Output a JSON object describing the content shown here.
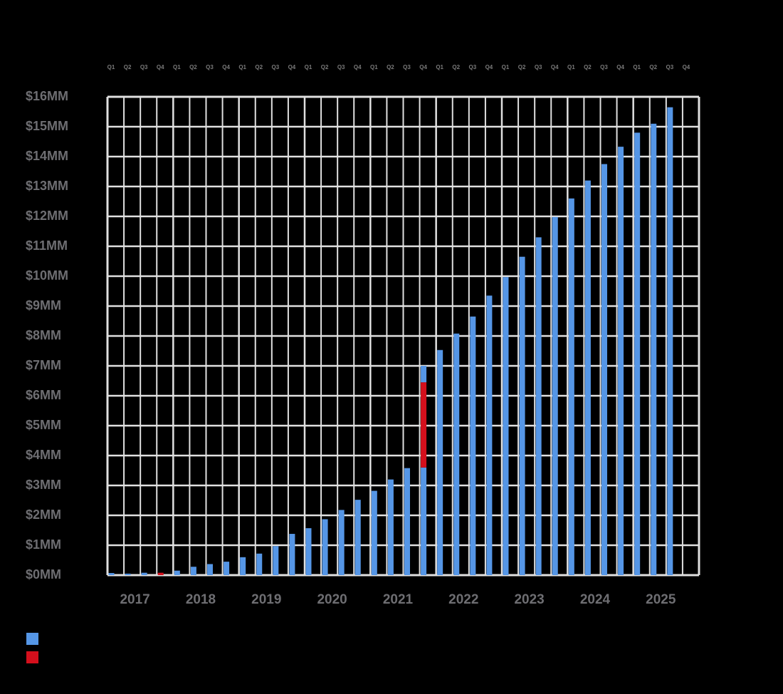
{
  "chart_data": {
    "type": "bar",
    "stacked": true,
    "title": "",
    "xlabel": "",
    "ylabel": "",
    "ylim": [
      0,
      16
    ],
    "y_unit": "$MM",
    "grid": true,
    "legend_position": "bottom-left",
    "yticks": [
      "$0MM",
      "$1MM",
      "$2MM",
      "$3MM",
      "$4MM",
      "$5MM",
      "$6MM",
      "$7MM",
      "$8MM",
      "$9MM",
      "$10MM",
      "$11MM",
      "$12MM",
      "$13MM",
      "$14MM",
      "$15MM",
      "$16MM"
    ],
    "years": [
      "2017",
      "2018",
      "2019",
      "2020",
      "2021",
      "2022",
      "2023",
      "2024",
      "2025"
    ],
    "quarter_labels": [
      "Q1",
      "Q2",
      "Q3",
      "Q4"
    ],
    "categories": [
      "2017 Q1",
      "2017 Q2",
      "2017 Q3",
      "2017 Q4",
      "2018 Q1",
      "2018 Q2",
      "2018 Q3",
      "2018 Q4",
      "2019 Q1",
      "2019 Q2",
      "2019 Q3",
      "2019 Q4",
      "2020 Q1",
      "2020 Q2",
      "2020 Q3",
      "2020 Q4",
      "2021 Q1",
      "2021 Q2",
      "2021 Q3",
      "2021 Q4",
      "2022 Q1",
      "2022 Q2",
      "2022 Q3",
      "2022 Q4",
      "2023 Q1",
      "2023 Q2",
      "2023 Q3",
      "2023 Q4",
      "2024 Q1",
      "2024 Q2",
      "2024 Q3",
      "2024 Q4",
      "2025 Q1",
      "2025 Q2",
      "2025 Q3",
      "2025 Q4"
    ],
    "series": [
      {
        "name": "",
        "color": "#5596e6",
        "values": [
          0.07,
          0.05,
          0.08,
          0,
          0.15,
          0.28,
          0.37,
          0.45,
          0.6,
          0.72,
          0.97,
          1.38,
          1.57,
          1.87,
          2.18,
          2.52,
          2.82,
          3.2,
          3.58,
          3.6,
          7.53,
          8.08,
          8.65,
          9.35,
          9.97,
          10.65,
          11.3,
          11.98,
          12.6,
          13.2,
          13.75,
          14.33,
          14.8,
          15.1,
          15.65,
          0
        ]
      },
      {
        "name": "",
        "color": "#d40f1c",
        "values": [
          0,
          0,
          0,
          0.08,
          0,
          0,
          0,
          0,
          0,
          0,
          0,
          0,
          0,
          0,
          0,
          0,
          0,
          0,
          0,
          2.85,
          0,
          0,
          0,
          0,
          0,
          0,
          0,
          0,
          0,
          0,
          0,
          0,
          0,
          0,
          0,
          0
        ]
      },
      {
        "name": "",
        "color": "#5596e6",
        "values": [
          0,
          0,
          0,
          0,
          0,
          0,
          0,
          0,
          0,
          0,
          0,
          0,
          0,
          0,
          0,
          0,
          0,
          0,
          0,
          0.55,
          0,
          0,
          0,
          0,
          0,
          0,
          0,
          0,
          0,
          0,
          0,
          0,
          0,
          0,
          0,
          0
        ]
      }
    ],
    "legend": [
      {
        "label": "",
        "color": "#5596e6"
      },
      {
        "label": "",
        "color": "#d40f1c"
      }
    ]
  },
  "colors": {
    "background": "#000000",
    "grid": "#e0e0e0",
    "label": "#6e6e72",
    "quarter_label": "#7a7a7a"
  }
}
